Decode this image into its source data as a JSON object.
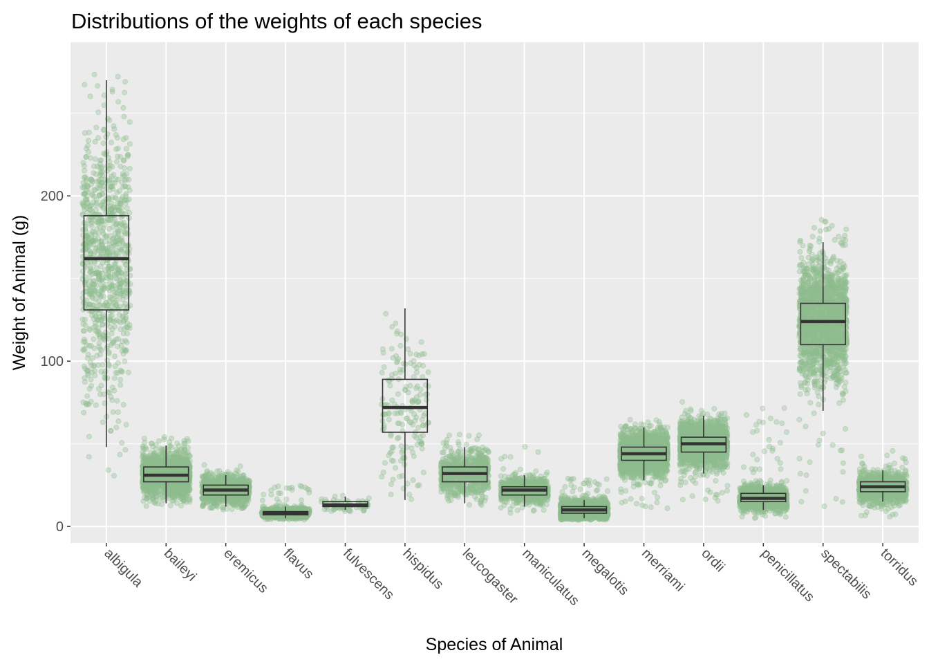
{
  "chart_data": {
    "type": "box",
    "title": "Distributions of the weights of each species",
    "xlabel": "Species of Animal",
    "ylabel": "Weight of Animal (g)",
    "ylim": [
      -10,
      293
    ],
    "yticks": [
      0,
      100,
      200
    ],
    "grid": true,
    "legend": "none",
    "colors": {
      "panel": "#ebebeb",
      "grid": "#ffffff",
      "points": "#8fbc8f",
      "box": "#333333"
    },
    "categories": [
      "albigula",
      "baileyi",
      "eremicus",
      "flavus",
      "fulvescens",
      "hispidus",
      "leucogaster",
      "maniculatus",
      "megalotis",
      "merriami",
      "ordii",
      "penicillatus",
      "spectabilis",
      "torridus"
    ],
    "boxes": [
      {
        "category": "albigula",
        "min": 48,
        "q1": 131,
        "median": 162,
        "q3": 188,
        "max": 270,
        "point_range": [
          30,
          280
        ],
        "n_points": 900
      },
      {
        "category": "baileyi",
        "min": 14,
        "q1": 27,
        "median": 31,
        "q3": 36,
        "max": 49,
        "point_range": [
          12,
          55
        ],
        "n_points": 1600
      },
      {
        "category": "eremicus",
        "min": 12,
        "q1": 19,
        "median": 22,
        "q3": 25,
        "max": 31,
        "point_range": [
          10,
          40
        ],
        "n_points": 900
      },
      {
        "category": "flavus",
        "min": 5,
        "q1": 7,
        "median": 8,
        "q3": 9,
        "max": 12,
        "point_range": [
          4,
          25
        ],
        "n_points": 900
      },
      {
        "category": "fulvescens",
        "min": 10,
        "q1": 12,
        "median": 13,
        "q3": 15,
        "max": 18,
        "point_range": [
          9,
          20
        ],
        "n_points": 75
      },
      {
        "category": "hispidus",
        "min": 16,
        "q1": 57,
        "median": 72,
        "q3": 89,
        "max": 132,
        "point_range": [
          16,
          141
        ],
        "n_points": 170
      },
      {
        "category": "leucogaster",
        "min": 14,
        "q1": 27,
        "median": 32,
        "q3": 36,
        "max": 48,
        "point_range": [
          12,
          56
        ],
        "n_points": 800
      },
      {
        "category": "maniculatus",
        "min": 12,
        "q1": 19,
        "median": 22,
        "q3": 24,
        "max": 31,
        "point_range": [
          8,
          49
        ],
        "n_points": 800
      },
      {
        "category": "megalotis",
        "min": 5,
        "q1": 8,
        "median": 10,
        "q3": 12,
        "max": 16,
        "point_range": [
          4,
          30
        ],
        "n_points": 1700
      },
      {
        "category": "merriami",
        "min": 28,
        "q1": 40,
        "median": 44,
        "q3": 48,
        "max": 60,
        "point_range": [
          10,
          65
        ],
        "n_points": 2500
      },
      {
        "category": "ordii",
        "min": 32,
        "q1": 45,
        "median": 50,
        "q3": 54,
        "max": 67,
        "point_range": [
          15,
          77
        ],
        "n_points": 2000
      },
      {
        "category": "penicillatus",
        "min": 10,
        "q1": 15,
        "median": 17,
        "q3": 20,
        "max": 25,
        "point_range": [
          5,
          74
        ],
        "n_points": 1200
      },
      {
        "category": "spectabilis",
        "min": 70,
        "q1": 110,
        "median": 124,
        "q3": 135,
        "max": 172,
        "point_range": [
          12,
          190
        ],
        "n_points": 1800
      },
      {
        "category": "torridus",
        "min": 15,
        "q1": 21,
        "median": 24,
        "q3": 27,
        "max": 34,
        "point_range": [
          5,
          46
        ],
        "n_points": 1200
      }
    ]
  }
}
